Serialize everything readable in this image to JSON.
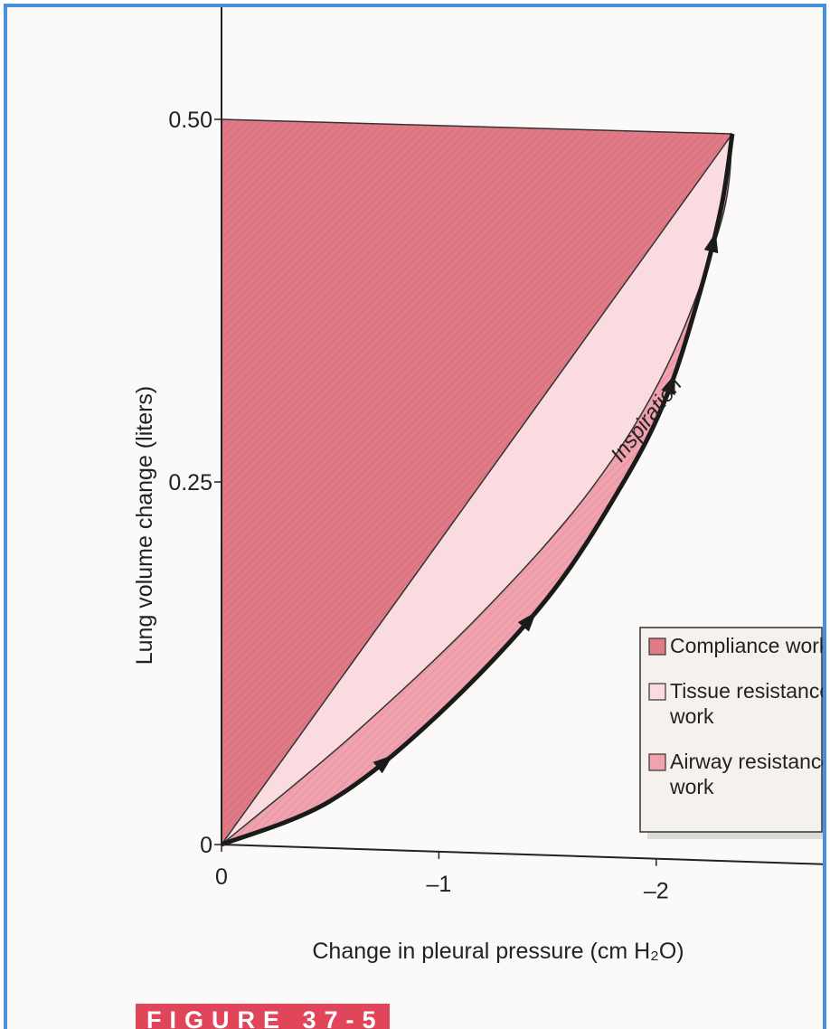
{
  "figure_label": "FIGURE 37-5",
  "colors": {
    "compliance": "#e07a86",
    "tissue": "#f9dbe0",
    "airway": "#f0a3ae",
    "curve": "#1a1a1a",
    "banner": "#e0455a"
  },
  "chart_data": {
    "type": "area",
    "xlabel": "Change in pleural pressure (cm H₂O)",
    "ylabel": "Lung volume change (liters)",
    "xlim": [
      0,
      -2.5
    ],
    "ylim": [
      0,
      0.5
    ],
    "x_ticks": [
      {
        "value": 0,
        "label": "0"
      },
      {
        "value": -1,
        "label": "–1"
      },
      {
        "value": -2,
        "label": "–2"
      }
    ],
    "y_ticks": [
      {
        "value": 0,
        "label": "0"
      },
      {
        "value": 0.25,
        "label": "0.25"
      },
      {
        "value": 0.5,
        "label": "0.50"
      }
    ],
    "end_point": {
      "x": -2.35,
      "y": 0.49
    },
    "series": [
      {
        "name": "Inspiration",
        "x": [
          0,
          -0.5,
          -1.0,
          -1.5,
          -1.85,
          -2.05,
          -2.2,
          -2.3,
          -2.35
        ],
        "y": [
          0,
          0.03,
          0.09,
          0.17,
          0.25,
          0.31,
          0.38,
          0.44,
          0.49
        ]
      },
      {
        "x": [
          0,
          -0.6,
          -1.2,
          -1.7,
          -2.05,
          -2.3,
          -2.35
        ],
        "y": [
          0,
          0.075,
          0.16,
          0.245,
          0.33,
          0.43,
          0.49
        ]
      }
    ],
    "regions": [
      {
        "key": "compliance",
        "label": "Compliance work"
      },
      {
        "key": "tissue",
        "label": "Tissue resistance work"
      },
      {
        "key": "airway",
        "label": "Airway resistance work"
      }
    ],
    "legend": {
      "placement": "bottom-right",
      "entries": [
        {
          "lines": [
            "Compliance work"
          ],
          "color_key": "compliance"
        },
        {
          "lines": [
            "Tissue resistance",
            "work"
          ],
          "color_key": "tissue"
        },
        {
          "lines": [
            "Airway resistance",
            "work"
          ],
          "color_key": "airway"
        }
      ]
    },
    "annotation": "Inspiration"
  }
}
